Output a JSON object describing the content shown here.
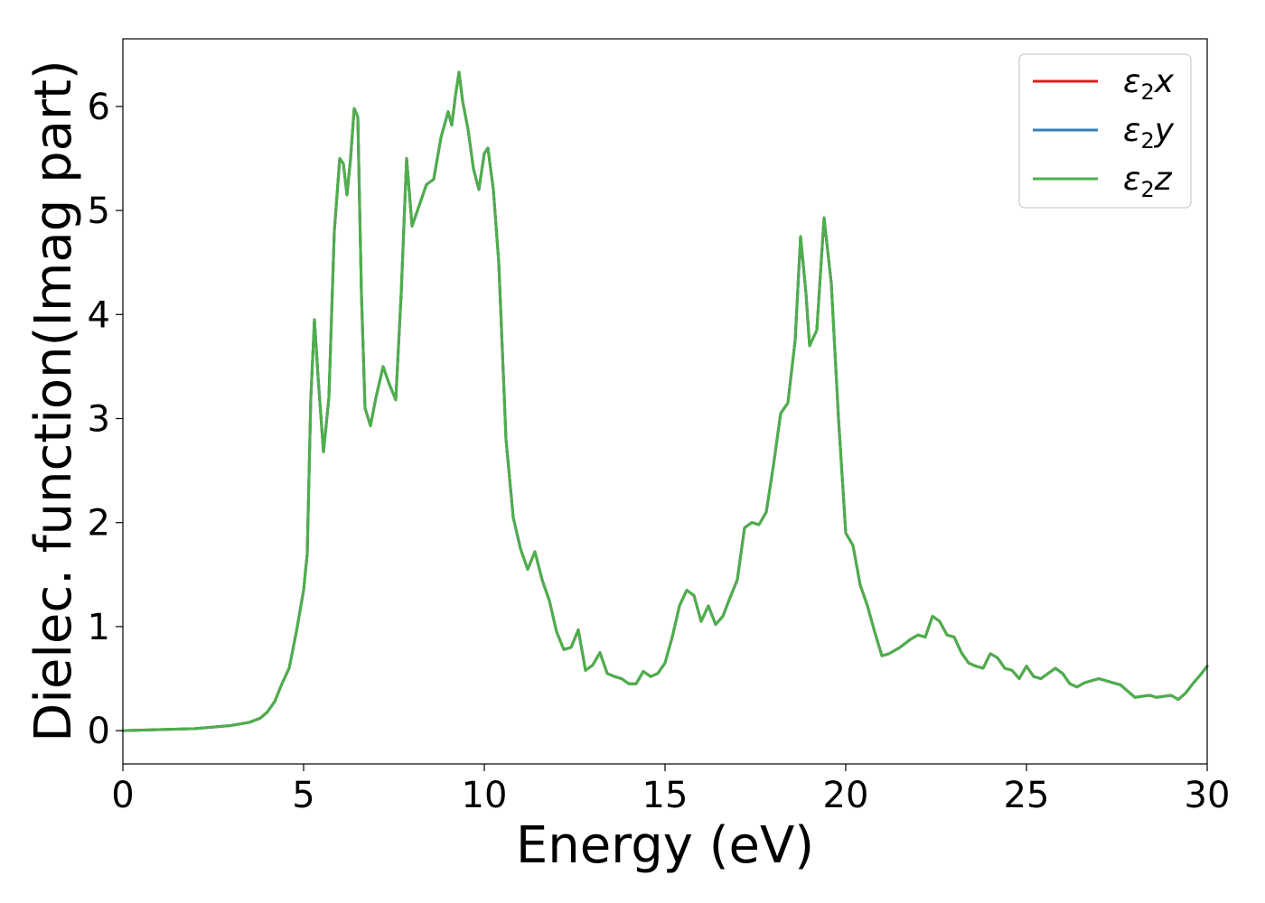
{
  "chart_data": {
    "type": "line",
    "title": "",
    "xlabel": "Energy (eV)",
    "ylabel": "Dielec. function(Imag part)",
    "xlim": [
      0,
      30
    ],
    "ylim": [
      -0.32,
      6.65
    ],
    "xticks": [
      0,
      5,
      10,
      15,
      20,
      25,
      30
    ],
    "yticks": [
      0,
      1,
      2,
      3,
      4,
      5,
      6
    ],
    "grid": false,
    "legend_position": "top-right",
    "series": [
      {
        "name": "ε2x",
        "legend_base": "ε",
        "legend_sub": "2",
        "legend_var": "x",
        "color": "#e41a1c"
      },
      {
        "name": "ε2y",
        "legend_base": "ε",
        "legend_sub": "2",
        "legend_var": "y",
        "color": "#377eb8"
      },
      {
        "name": "ε2z",
        "legend_base": "ε",
        "legend_sub": "2",
        "legend_var": "z",
        "color": "#4daf4a"
      }
    ],
    "x": [
      0,
      1,
      2,
      3,
      3.5,
      3.8,
      4.0,
      4.2,
      4.4,
      4.6,
      4.8,
      5.0,
      5.1,
      5.2,
      5.3,
      5.4,
      5.55,
      5.7,
      5.85,
      6.0,
      6.1,
      6.2,
      6.3,
      6.4,
      6.5,
      6.6,
      6.7,
      6.85,
      7.0,
      7.2,
      7.35,
      7.55,
      7.7,
      7.85,
      8.0,
      8.2,
      8.4,
      8.6,
      8.8,
      9.0,
      9.1,
      9.2,
      9.3,
      9.4,
      9.55,
      9.7,
      9.85,
      10.0,
      10.1,
      10.25,
      10.4,
      10.6,
      10.8,
      11.0,
      11.2,
      11.4,
      11.6,
      11.8,
      12.0,
      12.2,
      12.4,
      12.6,
      12.8,
      13.0,
      13.2,
      13.4,
      13.6,
      13.8,
      14.0,
      14.2,
      14.4,
      14.6,
      14.8,
      15.0,
      15.2,
      15.4,
      15.6,
      15.8,
      16.0,
      16.2,
      16.4,
      16.6,
      16.8,
      17.0,
      17.2,
      17.4,
      17.6,
      17.8,
      18.0,
      18.2,
      18.4,
      18.6,
      18.75,
      18.9,
      19.0,
      19.2,
      19.4,
      19.6,
      19.8,
      20.0,
      20.2,
      20.4,
      20.6,
      20.8,
      21.0,
      21.2,
      21.5,
      21.8,
      22.0,
      22.2,
      22.4,
      22.6,
      22.8,
      23.0,
      23.2,
      23.4,
      23.6,
      23.8,
      24.0,
      24.2,
      24.4,
      24.6,
      24.8,
      25.0,
      25.2,
      25.4,
      25.6,
      25.8,
      26.0,
      26.2,
      26.4,
      26.6,
      26.8,
      27.0,
      27.2,
      27.4,
      27.6,
      27.8,
      28.0,
      28.2,
      28.4,
      28.6,
      28.8,
      29.0,
      29.2,
      29.4,
      29.6,
      29.8,
      30.0
    ],
    "values": [
      0.0,
      0.01,
      0.02,
      0.05,
      0.08,
      0.12,
      0.18,
      0.28,
      0.45,
      0.6,
      0.95,
      1.35,
      1.7,
      3.2,
      3.95,
      3.4,
      2.68,
      3.2,
      4.8,
      5.5,
      5.45,
      5.15,
      5.5,
      5.98,
      5.9,
      4.2,
      3.1,
      2.93,
      3.2,
      3.5,
      3.35,
      3.18,
      4.2,
      5.5,
      4.85,
      5.05,
      5.25,
      5.3,
      5.7,
      5.95,
      5.82,
      6.1,
      6.33,
      6.05,
      5.78,
      5.4,
      5.2,
      5.55,
      5.6,
      5.2,
      4.5,
      2.8,
      2.05,
      1.75,
      1.55,
      1.72,
      1.45,
      1.25,
      0.95,
      0.78,
      0.8,
      0.97,
      0.58,
      0.63,
      0.75,
      0.55,
      0.52,
      0.5,
      0.45,
      0.45,
      0.57,
      0.52,
      0.55,
      0.65,
      0.9,
      1.2,
      1.35,
      1.3,
      1.05,
      1.2,
      1.02,
      1.1,
      1.28,
      1.45,
      1.95,
      2.0,
      1.98,
      2.1,
      2.55,
      3.05,
      3.15,
      3.75,
      4.75,
      4.2,
      3.7,
      3.85,
      4.93,
      4.3,
      3.0,
      1.9,
      1.78,
      1.4,
      1.2,
      0.95,
      0.72,
      0.74,
      0.8,
      0.88,
      0.92,
      0.9,
      1.1,
      1.05,
      0.92,
      0.9,
      0.75,
      0.65,
      0.62,
      0.6,
      0.74,
      0.7,
      0.6,
      0.58,
      0.5,
      0.62,
      0.52,
      0.5,
      0.55,
      0.6,
      0.55,
      0.45,
      0.42,
      0.46,
      0.48,
      0.5,
      0.48,
      0.46,
      0.44,
      0.38,
      0.32,
      0.33,
      0.34,
      0.32,
      0.33,
      0.34,
      0.3,
      0.36,
      0.45,
      0.53,
      0.62
    ]
  }
}
